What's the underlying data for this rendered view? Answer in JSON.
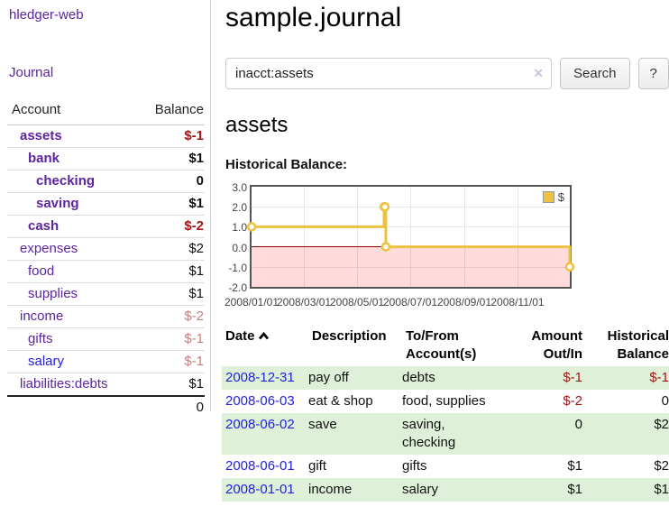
{
  "app": {
    "title": "hledger-web",
    "nav_journal": "Journal"
  },
  "colors": {
    "accent_purple": "#5c24a0",
    "link_blue": "#2222dd",
    "negative_strong": "#a11616",
    "negative_muted": "#c47f7f",
    "stripe_green": "#dff0d8",
    "chart_gold": "#edc240"
  },
  "sidebar": {
    "header": {
      "account": "Account",
      "balance": "Balance"
    },
    "accounts": [
      {
        "name": "assets",
        "indent": 1,
        "bold": true,
        "balance": "$-1",
        "balance_class": "neg-strong"
      },
      {
        "name": "bank",
        "indent": 2,
        "bold": true,
        "balance": "$1",
        "balance_class": ""
      },
      {
        "name": "checking",
        "indent": 3,
        "bold": true,
        "balance": "0",
        "balance_class": ""
      },
      {
        "name": "saving",
        "indent": 3,
        "bold": true,
        "balance": "$1",
        "balance_class": ""
      },
      {
        "name": "cash",
        "indent": 2,
        "bold": true,
        "balance": "$-2",
        "balance_class": "neg-strong"
      },
      {
        "name": "expenses",
        "indent": 1,
        "bold": false,
        "balance": "$2",
        "balance_class": ""
      },
      {
        "name": "food",
        "indent": 2,
        "bold": false,
        "balance": "$1",
        "balance_class": ""
      },
      {
        "name": "supplies",
        "indent": 2,
        "bold": false,
        "balance": "$1",
        "balance_class": ""
      },
      {
        "name": "income",
        "indent": 1,
        "bold": false,
        "balance": "$-2",
        "balance_class": "neg-muted"
      },
      {
        "name": "gifts",
        "indent": 2,
        "bold": false,
        "balance": "$-1",
        "balance_class": "neg-muted"
      },
      {
        "name": "salary",
        "indent": 2,
        "bold": false,
        "balance": "$-1",
        "balance_class": "neg-muted",
        "link_color": "blue"
      },
      {
        "name": "liabilities:debts",
        "indent": 1,
        "bold": false,
        "balance": "$1",
        "balance_class": ""
      }
    ],
    "total": "0"
  },
  "header": {
    "title": "sample.journal"
  },
  "search": {
    "query": "inacct:assets",
    "clear_label": "✕",
    "button_label": "Search",
    "help_label": "?"
  },
  "account_page": {
    "title": "assets",
    "chart_label": "Historical Balance:"
  },
  "chart_data": {
    "type": "line",
    "style": "step",
    "title": "Historical Balance",
    "x_type": "date",
    "xlim": [
      "2008-01-01",
      "2008-12-31"
    ],
    "ylim": [
      -2,
      3
    ],
    "grid": true,
    "legend_position": "top-right",
    "negative_region_color": "rgba(255,0,0,0.14)",
    "zero_line_color": "#8b0000",
    "yticks": [
      {
        "value": 3,
        "label": "3.0"
      },
      {
        "value": 2,
        "label": "2.0"
      },
      {
        "value": 1,
        "label": "1.0"
      },
      {
        "value": 0,
        "label": "0.0"
      },
      {
        "value": -1,
        "label": "-1.0"
      },
      {
        "value": -2,
        "label": "-2.0"
      }
    ],
    "xticks": [
      {
        "date": "2008-01-01",
        "label": "2008/01/01"
      },
      {
        "date": "2008-03-01",
        "label": "2008/03/01"
      },
      {
        "date": "2008-05-01",
        "label": "2008/05/01"
      },
      {
        "date": "2008-07-01",
        "label": "2008/07/01"
      },
      {
        "date": "2008-09-01",
        "label": "2008/09/01"
      },
      {
        "date": "2008-11-01",
        "label": "2008/11/01"
      }
    ],
    "series": [
      {
        "name": "$",
        "label": "$",
        "color": "#edc240",
        "points": [
          [
            "2008-01-01",
            1
          ],
          [
            "2008-06-01",
            2
          ],
          [
            "2008-06-02",
            2
          ],
          [
            "2008-06-03",
            0
          ],
          [
            "2008-12-31",
            -1
          ]
        ]
      }
    ]
  },
  "register": {
    "columns": [
      {
        "line1": "Date",
        "line2": ""
      },
      {
        "line1": "Description",
        "line2": ""
      },
      {
        "line1": "To/From",
        "line2": "Account(s)"
      },
      {
        "line1": "Amount",
        "line2": "Out/In"
      },
      {
        "line1": "Historical",
        "line2": "Balance"
      }
    ],
    "rows": [
      {
        "date": "2008-12-31",
        "description": "pay off",
        "accounts": "debts",
        "amount": "$-1",
        "balance": "$-1"
      },
      {
        "date": "2008-06-03",
        "description": "eat & shop",
        "accounts": "food, supplies",
        "amount": "$-2",
        "balance": "0"
      },
      {
        "date": "2008-06-02",
        "description": "save",
        "accounts": "saving, checking",
        "amount": "0",
        "balance": "$2"
      },
      {
        "date": "2008-06-01",
        "description": "gift",
        "accounts": "gifts",
        "amount": "$1",
        "balance": "$2"
      },
      {
        "date": "2008-01-01",
        "description": "income",
        "accounts": "salary",
        "amount": "$1",
        "balance": "$1"
      }
    ]
  }
}
